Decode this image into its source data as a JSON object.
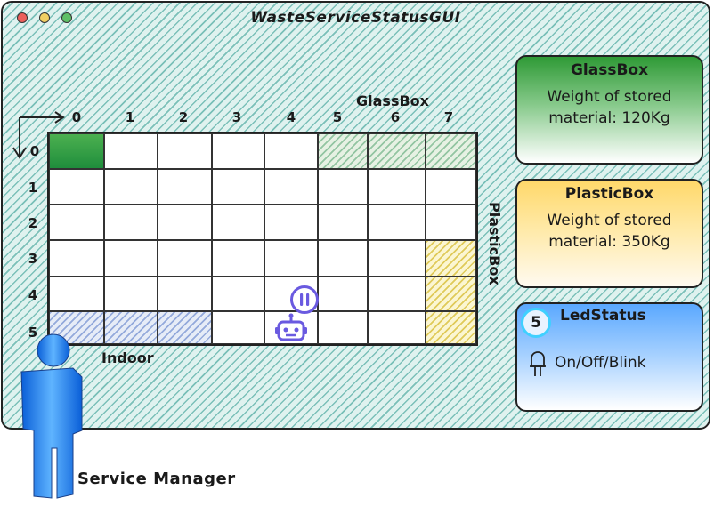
{
  "window": {
    "title": "WasteServiceStatusGUI"
  },
  "grid": {
    "columns": [
      "0",
      "1",
      "2",
      "3",
      "4",
      "5",
      "6",
      "7"
    ],
    "rows": [
      "0",
      "1",
      "2",
      "3",
      "4",
      "5"
    ],
    "glassbox_label": "GlassBox",
    "plasticbox_label": "PlasticBox",
    "indoor_label": "Indoor"
  },
  "panels": {
    "glass": {
      "title": "GlassBox",
      "line1": "Weight of stored",
      "line2": "material: 120Kg"
    },
    "plastic": {
      "title": "PlasticBox",
      "line1": "Weight of stored",
      "line2": "material: 350Kg"
    },
    "led": {
      "badge": "5",
      "title": "LedStatus",
      "status": "On/Off/Blink"
    }
  },
  "actor": {
    "label": "Service Manager"
  },
  "colors": {
    "window_bg": "#dff2ef",
    "glass": "#2f9a36",
    "plastic": "#ffd86a",
    "led": "#5aa8ff",
    "robot": "#6a5ae0"
  },
  "icons": {
    "robot": "robot-icon",
    "pause": "pause-icon",
    "led": "led-bulb-icon",
    "actor": "person-icon"
  }
}
